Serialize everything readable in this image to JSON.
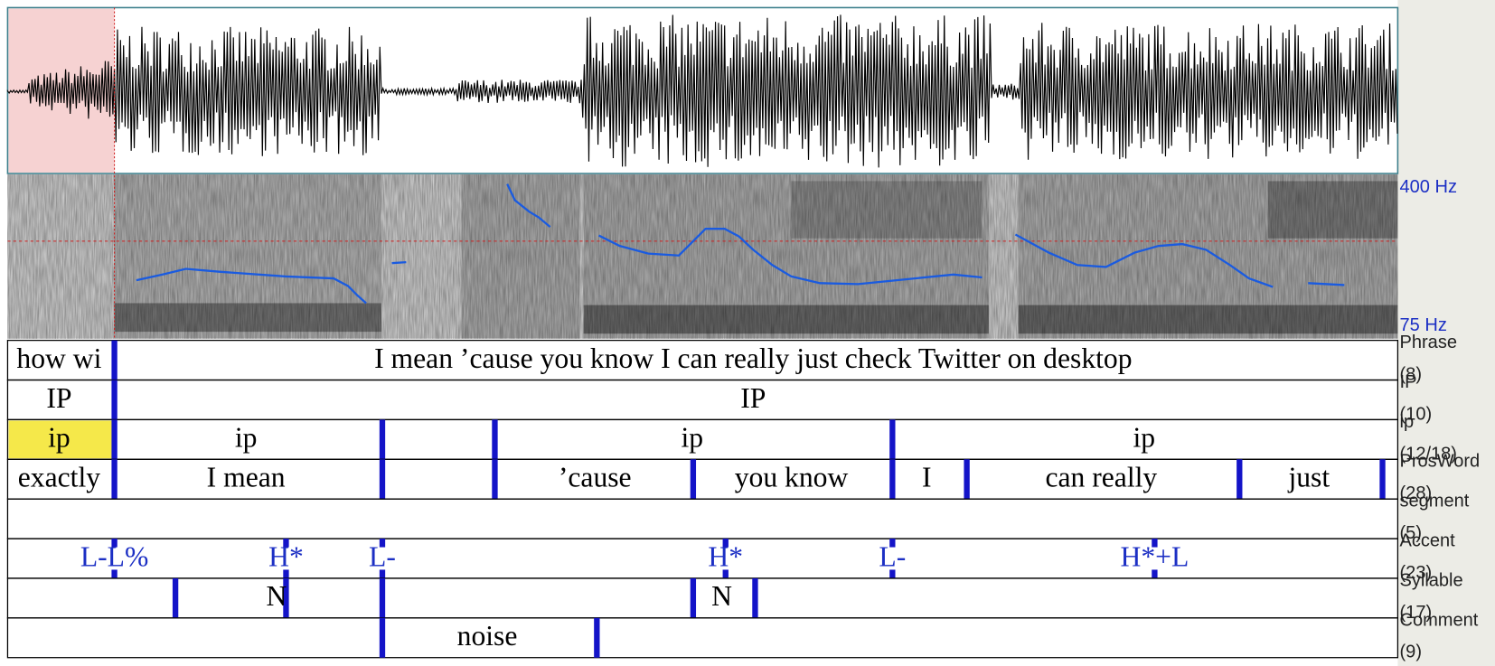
{
  "spectrogram": {
    "top_label": "400 Hz",
    "bottom_label": "75 Hz"
  },
  "tiers": [
    {
      "name": "Phrase",
      "count": "(8)",
      "labels": [
        "how wi",
        "I mean ’cause you know I can really just check Twitter on desktop"
      ]
    },
    {
      "name": "IP",
      "count": "(10)",
      "labels": [
        "IP",
        "IP"
      ]
    },
    {
      "name": "ip",
      "count": "(12/18)",
      "labels": [
        "ip",
        "ip",
        "ip",
        "ip"
      ]
    },
    {
      "name": "ProsWord",
      "count": "(28)",
      "labels": [
        "exactly",
        "I mean",
        "’cause",
        "you know",
        "I",
        "can really",
        "just"
      ]
    },
    {
      "name": "segment",
      "count": "(5)",
      "labels": []
    },
    {
      "name": "Accent",
      "count": "(23)",
      "labels": [
        "L-L%",
        "H*",
        "L-",
        "H*",
        "L-",
        "H*+L"
      ]
    },
    {
      "name": "Syllable",
      "count": "(17)",
      "labels": [
        "N",
        "N"
      ]
    },
    {
      "name": "Comment",
      "count": "(9)",
      "labels": [
        "noise"
      ]
    }
  ]
}
